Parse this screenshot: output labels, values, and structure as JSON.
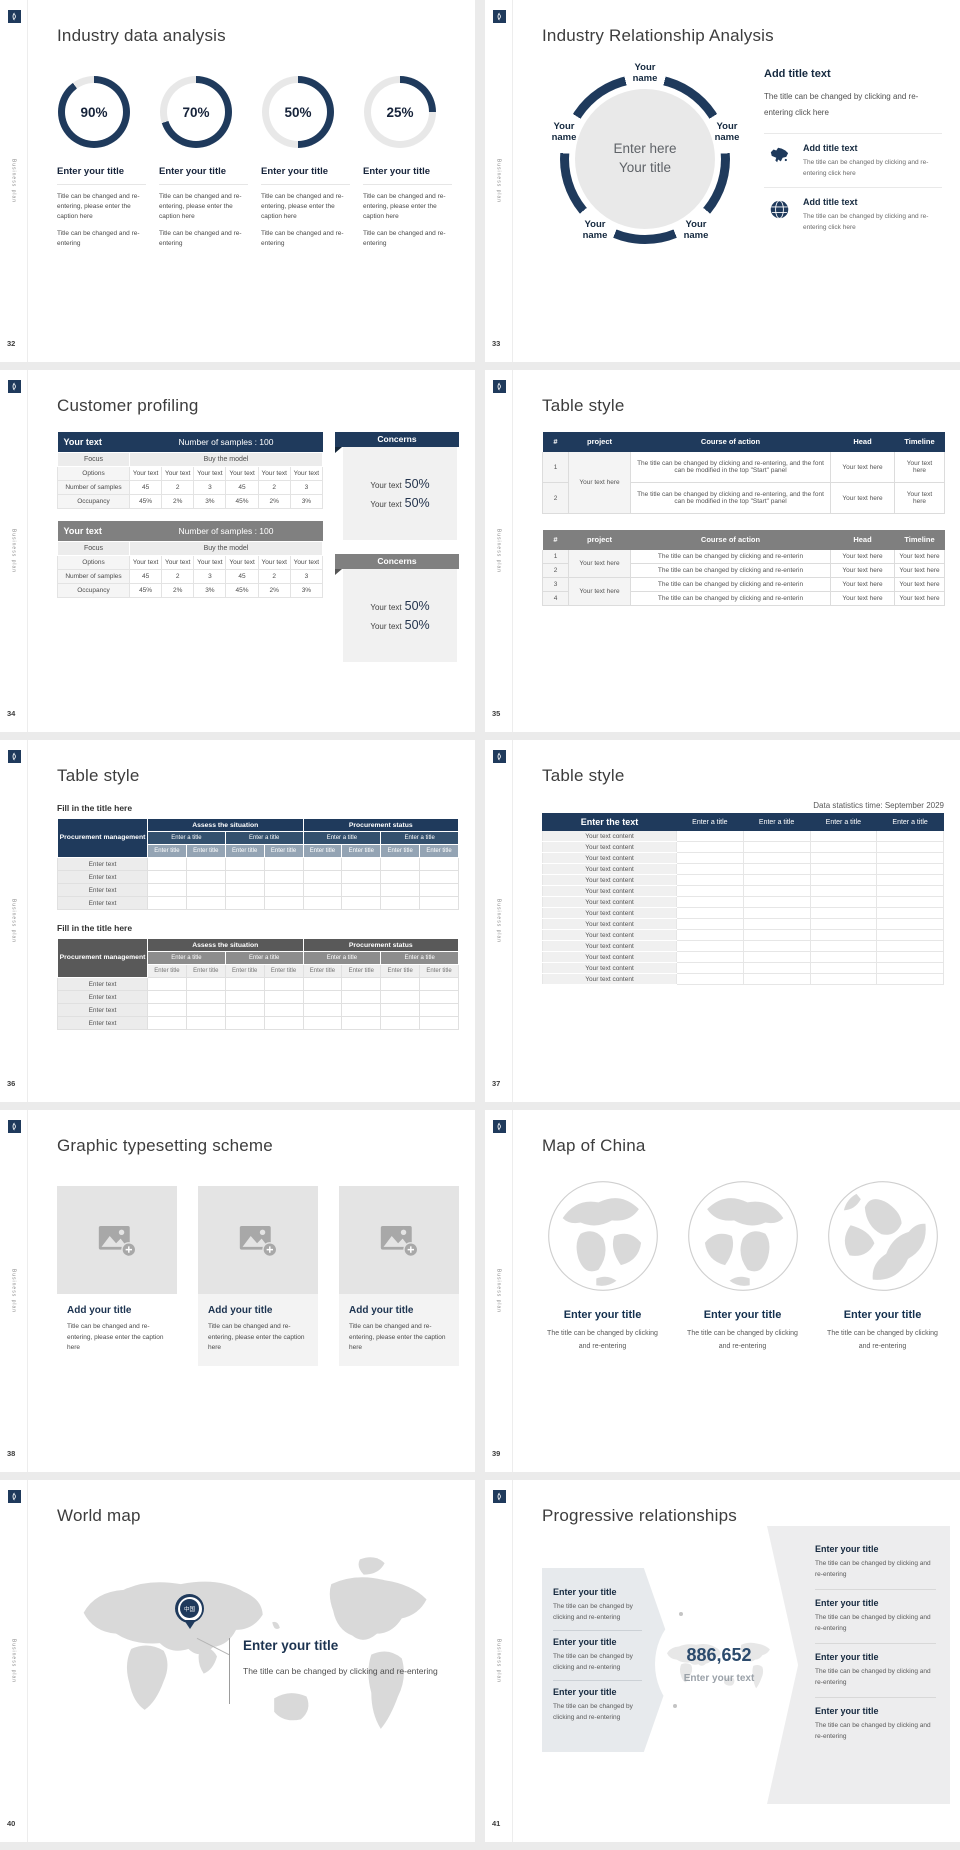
{
  "brand": {
    "vertical_label": "Business plan"
  },
  "slides": {
    "s32": {
      "number": "32",
      "title": "Industry data analysis",
      "donuts": [
        {
          "value": 90,
          "label": "90%"
        },
        {
          "value": 70,
          "label": "70%"
        },
        {
          "value": 50,
          "label": "50%"
        },
        {
          "value": 25,
          "label": "25%"
        }
      ],
      "item_title": "Enter your title",
      "caption_a": "Title can be changed and re-entering, please enter the caption here",
      "caption_b": "Title can be changed and re-entering"
    },
    "s33": {
      "number": "33",
      "title": "Industry Relationship Analysis",
      "node_label": "Your name",
      "center_line1": "Enter here",
      "center_line2": "Your title",
      "intro_title": "Add title text",
      "intro_text": "The title can be changed by clicking and re-entering click here",
      "items": [
        {
          "icon": "china-map-icon",
          "title": "Add title text",
          "text": "The title can be changed by clicking and re-entering click here"
        },
        {
          "icon": "globe-icon",
          "title": "Add title text",
          "text": "The title can be changed by clicking and re-entering click here"
        }
      ]
    },
    "s34": {
      "number": "34",
      "title": "Customer profiling",
      "table": {
        "header_left": "Your text",
        "header_right": "Number of samples : 100",
        "focus_label": "Focus",
        "focus_value": "Buy the model",
        "options_label": "Options",
        "option_cell": "Your text",
        "samples_label": "Number of samples",
        "samples": [
          "45",
          "2",
          "3",
          "45",
          "2",
          "3"
        ],
        "occupancy_label": "Occupancy",
        "occupancy": [
          "45%",
          "2%",
          "3%",
          "45%",
          "2%",
          "3%"
        ]
      },
      "concerns": {
        "header": "Concerns",
        "item_text": "Your text",
        "item_value": "50%"
      }
    },
    "s35": {
      "number": "35",
      "title": "Table style",
      "columns": [
        "#",
        "project",
        "Course of action",
        "Head",
        "Timeline"
      ],
      "t1": {
        "project": "Your text here",
        "rows": [
          {
            "n": "1",
            "course": "The title can be changed by clicking and re-entering, and the font can be modified in the top \"Start\" panel",
            "head": "Your text here",
            "timeline": "Your text here"
          },
          {
            "n": "2",
            "course": "The title can be changed by clicking and re-entering, and the font can be modified in the top \"Start\" panel",
            "head": "Your text here",
            "timeline": "Your text here"
          }
        ]
      },
      "t2": {
        "project_a": "Your text here",
        "project_b": "Your text here",
        "rows": [
          {
            "n": "1",
            "course": "The title can be changed by clicking and re-enterin",
            "head": "Your text here",
            "timeline": "Your text here"
          },
          {
            "n": "2",
            "course": "The title can be changed by clicking and re-enterin",
            "head": "Your text here",
            "timeline": "Your text here"
          },
          {
            "n": "3",
            "course": "The title can be changed by clicking and re-enterin",
            "head": "Your text here",
            "timeline": "Your text here"
          },
          {
            "n": "4",
            "course": "The title can be changed by clicking and re-enterin",
            "head": "Your text here",
            "timeline": "Your text here"
          }
        ]
      }
    },
    "s36": {
      "number": "36",
      "title": "Table style",
      "section_title": "Fill in the title here",
      "corner": "Procurement management",
      "group_a": "Assess the situation",
      "group_b": "Procurement status",
      "subheader": "Enter a title",
      "subsubheader": "Enter title",
      "row_label": "Enter text"
    },
    "s37": {
      "number": "37",
      "title": "Table style",
      "note": "Data statistics time: September 2029",
      "first_column_header": "Enter the text",
      "column_header": "Enter a title",
      "rows": [
        "Your text content",
        "Your text content",
        "Your text content",
        "Your text content",
        "Your text content",
        "Your text content",
        "Your text content",
        "Your text content",
        "Your text content",
        "Your text content",
        "Your text content",
        "Your text content",
        "Your text content",
        "Your text content"
      ]
    },
    "s38": {
      "number": "38",
      "title": "Graphic typesetting scheme",
      "card_title": "Add your title",
      "card_caption": "Title can be changed and re-entering, please enter the caption here"
    },
    "s39": {
      "number": "39",
      "title": "Map of China",
      "item_title": "Enter your title",
      "item_caption": "The title can be changed by clicking and re-entering"
    },
    "s40": {
      "number": "40",
      "title": "World map",
      "pin_label": "中国",
      "item_title": "Enter your title",
      "caption": "The title can be changed by clicking and re-entering"
    },
    "s41": {
      "number": "41",
      "title": "Progressive relationships",
      "stat_value": "886,652",
      "stat_label": "Enter your text",
      "item_title": "Enter your title",
      "item_caption": "The title can be changed by clicking and re-entering"
    }
  }
}
